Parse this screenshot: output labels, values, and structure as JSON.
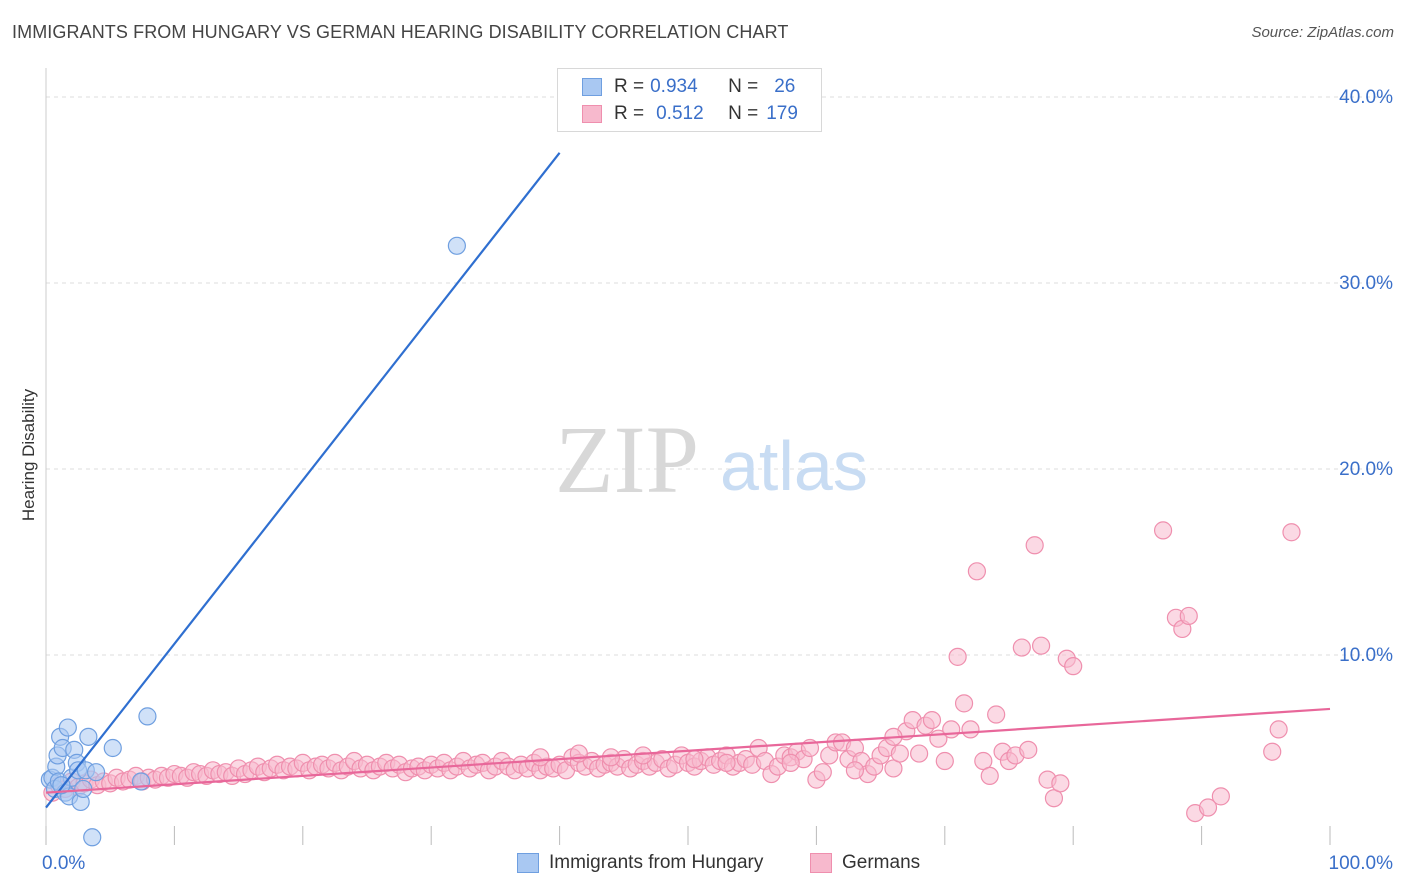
{
  "header": {
    "title": "IMMIGRANTS FROM HUNGARY VS GERMAN HEARING DISABILITY CORRELATION CHART",
    "source": "Source: ZipAtlas.com"
  },
  "watermark": {
    "zip": "ZIP",
    "atlas": "atlas"
  },
  "legend_box": {
    "rows": [
      {
        "r_label": "R =",
        "r_value": "0.934",
        "n_label": "N =",
        "n_value": "26"
      },
      {
        "r_label": "R =",
        "r_value": "0.512",
        "n_label": "N =",
        "n_value": "179"
      }
    ]
  },
  "bottom_legend": {
    "series1": "Immigrants from Hungary",
    "series2": "Germans"
  },
  "chart_data": {
    "type": "scatter",
    "title": "IMMIGRANTS FROM HUNGARY VS GERMAN HEARING DISABILITY CORRELATION CHART",
    "xlabel": "",
    "ylabel": "Hearing Disability",
    "xlim": [
      0,
      100
    ],
    "ylim": [
      0,
      42
    ],
    "x_tick_labels": [
      "0.0%",
      "100.0%"
    ],
    "y_ticks": [
      10,
      20,
      30,
      40
    ],
    "y_tick_labels": [
      "10.0%",
      "20.0%",
      "30.0%",
      "40.0%"
    ],
    "grid": true,
    "colors": {
      "hungary_fill": "#a9c8f2",
      "hungary_edge": "#6f9fe0",
      "hungary_line": "#2f6fd0",
      "germans_fill": "#f7b9cd",
      "germans_edge": "#ef8fae",
      "germans_line": "#e8679a",
      "axis_text": "#3a6fc9",
      "grid": "#dddddd"
    },
    "series": [
      {
        "name": "Immigrants from Hungary",
        "r": 0.934,
        "n": 26,
        "trend": {
          "x0": 0,
          "y0": 1.8,
          "x1": 40,
          "y1": 37.0
        },
        "points": [
          [
            0.3,
            3.3
          ],
          [
            0.5,
            3.4
          ],
          [
            0.7,
            2.8
          ],
          [
            0.8,
            4.0
          ],
          [
            0.9,
            4.6
          ],
          [
            1.0,
            3.2
          ],
          [
            1.1,
            5.6
          ],
          [
            1.3,
            5.0
          ],
          [
            1.5,
            2.6
          ],
          [
            1.7,
            6.1
          ],
          [
            1.8,
            2.4
          ],
          [
            2.0,
            3.4
          ],
          [
            2.2,
            4.9
          ],
          [
            2.4,
            4.2
          ],
          [
            2.5,
            3.8
          ],
          [
            2.7,
            2.1
          ],
          [
            2.9,
            2.8
          ],
          [
            3.1,
            3.8
          ],
          [
            3.3,
            5.6
          ],
          [
            3.6,
            0.2
          ],
          [
            3.9,
            3.7
          ],
          [
            5.2,
            5.0
          ],
          [
            7.4,
            3.2
          ],
          [
            7.9,
            6.7
          ],
          [
            32.0,
            32.0
          ],
          [
            1.2,
            3.0
          ]
        ]
      },
      {
        "name": "Germans",
        "r": 0.512,
        "n": 179,
        "trend": {
          "x0": 0,
          "y0": 2.6,
          "x1": 100,
          "y1": 7.1
        },
        "points": [
          [
            0.5,
            2.6
          ],
          [
            1.0,
            3.0
          ],
          [
            1.5,
            2.8
          ],
          [
            2.0,
            3.2
          ],
          [
            2.5,
            2.9
          ],
          [
            3.0,
            3.1
          ],
          [
            3.5,
            3.3
          ],
          [
            4.0,
            3.0
          ],
          [
            4.5,
            3.2
          ],
          [
            5.0,
            3.1
          ],
          [
            5.5,
            3.4
          ],
          [
            6.0,
            3.2
          ],
          [
            6.5,
            3.3
          ],
          [
            7.0,
            3.5
          ],
          [
            7.5,
            3.2
          ],
          [
            8.0,
            3.4
          ],
          [
            8.5,
            3.3
          ],
          [
            9.0,
            3.5
          ],
          [
            9.5,
            3.4
          ],
          [
            10.0,
            3.6
          ],
          [
            10.5,
            3.5
          ],
          [
            11.0,
            3.4
          ],
          [
            11.5,
            3.7
          ],
          [
            12.0,
            3.6
          ],
          [
            12.5,
            3.5
          ],
          [
            13.0,
            3.8
          ],
          [
            13.5,
            3.6
          ],
          [
            14.0,
            3.7
          ],
          [
            14.5,
            3.5
          ],
          [
            15.0,
            3.9
          ],
          [
            15.5,
            3.6
          ],
          [
            16.0,
            3.8
          ],
          [
            16.5,
            4.0
          ],
          [
            17.0,
            3.7
          ],
          [
            17.5,
            3.9
          ],
          [
            18.0,
            4.1
          ],
          [
            18.5,
            3.8
          ],
          [
            19.0,
            4.0
          ],
          [
            19.5,
            3.9
          ],
          [
            20.0,
            4.2
          ],
          [
            20.5,
            3.8
          ],
          [
            21.0,
            4.0
          ],
          [
            21.5,
            4.1
          ],
          [
            22.0,
            3.9
          ],
          [
            22.5,
            4.2
          ],
          [
            23.0,
            3.8
          ],
          [
            23.5,
            4.0
          ],
          [
            24.0,
            4.3
          ],
          [
            24.5,
            3.9
          ],
          [
            25.0,
            4.1
          ],
          [
            25.5,
            3.8
          ],
          [
            26.0,
            4.0
          ],
          [
            26.5,
            4.2
          ],
          [
            27.0,
            3.9
          ],
          [
            27.5,
            4.1
          ],
          [
            28.0,
            3.7
          ],
          [
            28.5,
            3.9
          ],
          [
            29.0,
            4.0
          ],
          [
            29.5,
            3.8
          ],
          [
            30.0,
            4.1
          ],
          [
            30.5,
            3.9
          ],
          [
            31.0,
            4.2
          ],
          [
            31.5,
            3.8
          ],
          [
            32.0,
            4.0
          ],
          [
            32.5,
            4.3
          ],
          [
            33.0,
            3.9
          ],
          [
            33.5,
            4.1
          ],
          [
            34.0,
            4.2
          ],
          [
            34.5,
            3.8
          ],
          [
            35.0,
            4.0
          ],
          [
            35.5,
            4.3
          ],
          [
            36.0,
            4.0
          ],
          [
            36.5,
            3.8
          ],
          [
            37.0,
            4.1
          ],
          [
            37.5,
            3.9
          ],
          [
            38.0,
            4.2
          ],
          [
            38.5,
            3.8
          ],
          [
            39.0,
            4.0
          ],
          [
            39.5,
            3.9
          ],
          [
            40.0,
            4.1
          ],
          [
            40.5,
            3.8
          ],
          [
            41.0,
            4.5
          ],
          [
            41.5,
            4.2
          ],
          [
            42.0,
            4.0
          ],
          [
            42.5,
            4.3
          ],
          [
            43.0,
            3.9
          ],
          [
            43.5,
            4.1
          ],
          [
            44.0,
            4.2
          ],
          [
            44.5,
            4.0
          ],
          [
            45.0,
            4.4
          ],
          [
            45.5,
            3.9
          ],
          [
            46.0,
            4.1
          ],
          [
            46.5,
            4.3
          ],
          [
            47.0,
            4.0
          ],
          [
            47.5,
            4.2
          ],
          [
            48.0,
            4.4
          ],
          [
            48.5,
            3.9
          ],
          [
            49.0,
            4.1
          ],
          [
            49.5,
            4.6
          ],
          [
            50.0,
            4.2
          ],
          [
            50.5,
            4.0
          ],
          [
            51.0,
            4.3
          ],
          [
            51.5,
            4.5
          ],
          [
            52.0,
            4.1
          ],
          [
            52.5,
            4.3
          ],
          [
            53.0,
            4.6
          ],
          [
            53.5,
            4.0
          ],
          [
            54.0,
            4.2
          ],
          [
            54.5,
            4.4
          ],
          [
            55.0,
            4.1
          ],
          [
            55.5,
            5.0
          ],
          [
            56.0,
            4.3
          ],
          [
            56.5,
            3.6
          ],
          [
            57.0,
            4.0
          ],
          [
            57.5,
            4.6
          ],
          [
            58.0,
            4.5
          ],
          [
            58.5,
            4.8
          ],
          [
            59.0,
            4.4
          ],
          [
            59.5,
            5.0
          ],
          [
            60.0,
            3.3
          ],
          [
            60.5,
            3.7
          ],
          [
            61.0,
            4.6
          ],
          [
            61.5,
            5.3
          ],
          [
            62.0,
            5.3
          ],
          [
            62.5,
            4.4
          ],
          [
            63.0,
            5.0
          ],
          [
            63.5,
            4.3
          ],
          [
            64.0,
            3.6
          ],
          [
            64.5,
            4.0
          ],
          [
            65.0,
            4.6
          ],
          [
            65.5,
            5.0
          ],
          [
            66.0,
            3.9
          ],
          [
            66.5,
            4.7
          ],
          [
            67.0,
            5.9
          ],
          [
            67.5,
            6.5
          ],
          [
            68.0,
            4.7
          ],
          [
            68.5,
            6.2
          ],
          [
            69.0,
            6.5
          ],
          [
            69.5,
            5.5
          ],
          [
            70.0,
            4.3
          ],
          [
            70.5,
            6.0
          ],
          [
            71.0,
            9.9
          ],
          [
            71.5,
            7.4
          ],
          [
            72.0,
            6.0
          ],
          [
            72.5,
            14.5
          ],
          [
            73.0,
            4.3
          ],
          [
            73.5,
            3.5
          ],
          [
            74.0,
            6.8
          ],
          [
            74.5,
            4.8
          ],
          [
            75.0,
            4.3
          ],
          [
            75.5,
            4.6
          ],
          [
            76.0,
            10.4
          ],
          [
            76.5,
            4.9
          ],
          [
            77.0,
            15.9
          ],
          [
            77.5,
            10.5
          ],
          [
            78.0,
            3.3
          ],
          [
            78.5,
            2.3
          ],
          [
            79.0,
            3.1
          ],
          [
            79.5,
            9.8
          ],
          [
            80.0,
            9.4
          ],
          [
            87.0,
            16.7
          ],
          [
            88.0,
            12.0
          ],
          [
            88.5,
            11.4
          ],
          [
            89.0,
            12.1
          ],
          [
            89.5,
            1.5
          ],
          [
            90.5,
            1.8
          ],
          [
            91.5,
            2.4
          ],
          [
            95.5,
            4.8
          ],
          [
            96.0,
            6.0
          ],
          [
            97.0,
            16.6
          ],
          [
            41.5,
            4.7
          ],
          [
            44.0,
            4.5
          ],
          [
            50.5,
            4.4
          ],
          [
            53.0,
            4.2
          ],
          [
            38.5,
            4.5
          ],
          [
            46.5,
            4.6
          ],
          [
            58.0,
            4.2
          ],
          [
            63.0,
            3.8
          ],
          [
            66.0,
            5.6
          ]
        ]
      }
    ]
  }
}
